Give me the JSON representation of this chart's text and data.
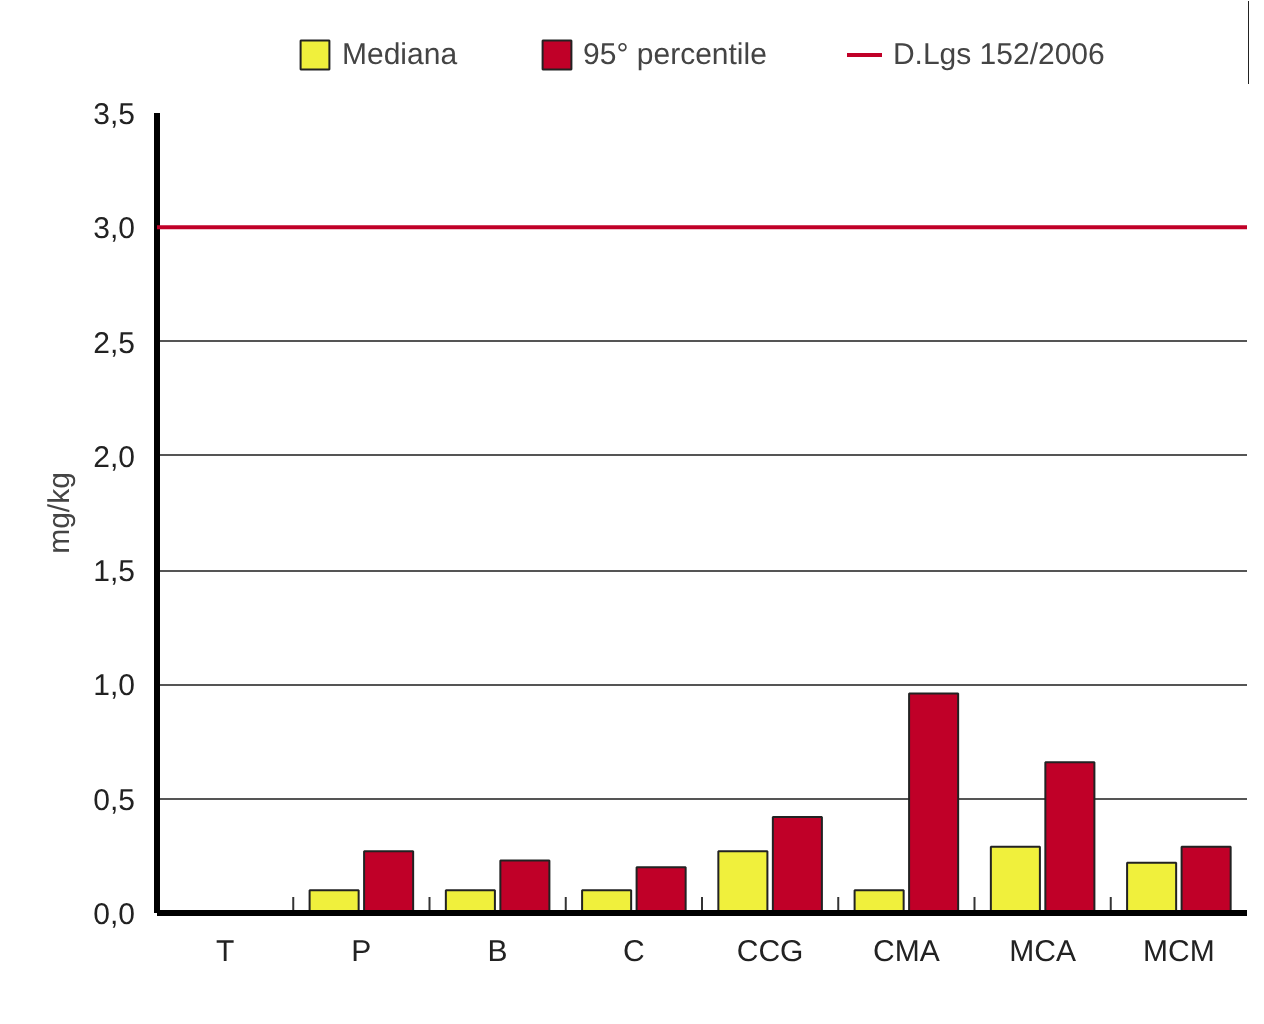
{
  "chart_data": {
    "type": "bar",
    "ylabel": "mg/kg",
    "categories": [
      "T",
      "P",
      "B",
      "C",
      "CCG",
      "CMA",
      "MCA",
      "MCM"
    ],
    "series": [
      {
        "name": "Mediana",
        "color": "#f0f03c",
        "values": [
          0,
          0.1,
          0.1,
          0.1,
          0.27,
          0.1,
          0.29,
          0.22
        ]
      },
      {
        "name": "95° percentile",
        "color": "#c00028",
        "values": [
          0,
          0.27,
          0.23,
          0.2,
          0.42,
          0.96,
          0.66,
          0.29
        ]
      }
    ],
    "ref_lines": [
      {
        "axis": "y",
        "value": 3.0,
        "label": "D.Lgs 152/2006",
        "color": "#c00028"
      }
    ],
    "ylim": [
      0,
      3.5
    ],
    "yticks": [
      {
        "value": 0,
        "label": "0,0"
      },
      {
        "value": 0.5,
        "label": "0,5"
      },
      {
        "value": 1.0,
        "label": "1,0"
      },
      {
        "value": 1.5,
        "label": "1,5"
      },
      {
        "value": 2.0,
        "label": "2,0"
      },
      {
        "value": 2.5,
        "label": "2,5"
      },
      {
        "value": 3.0,
        "label": "3,0"
      },
      {
        "value": 3.5,
        "label": "3,5"
      }
    ],
    "grid": "y",
    "legend": "top"
  }
}
